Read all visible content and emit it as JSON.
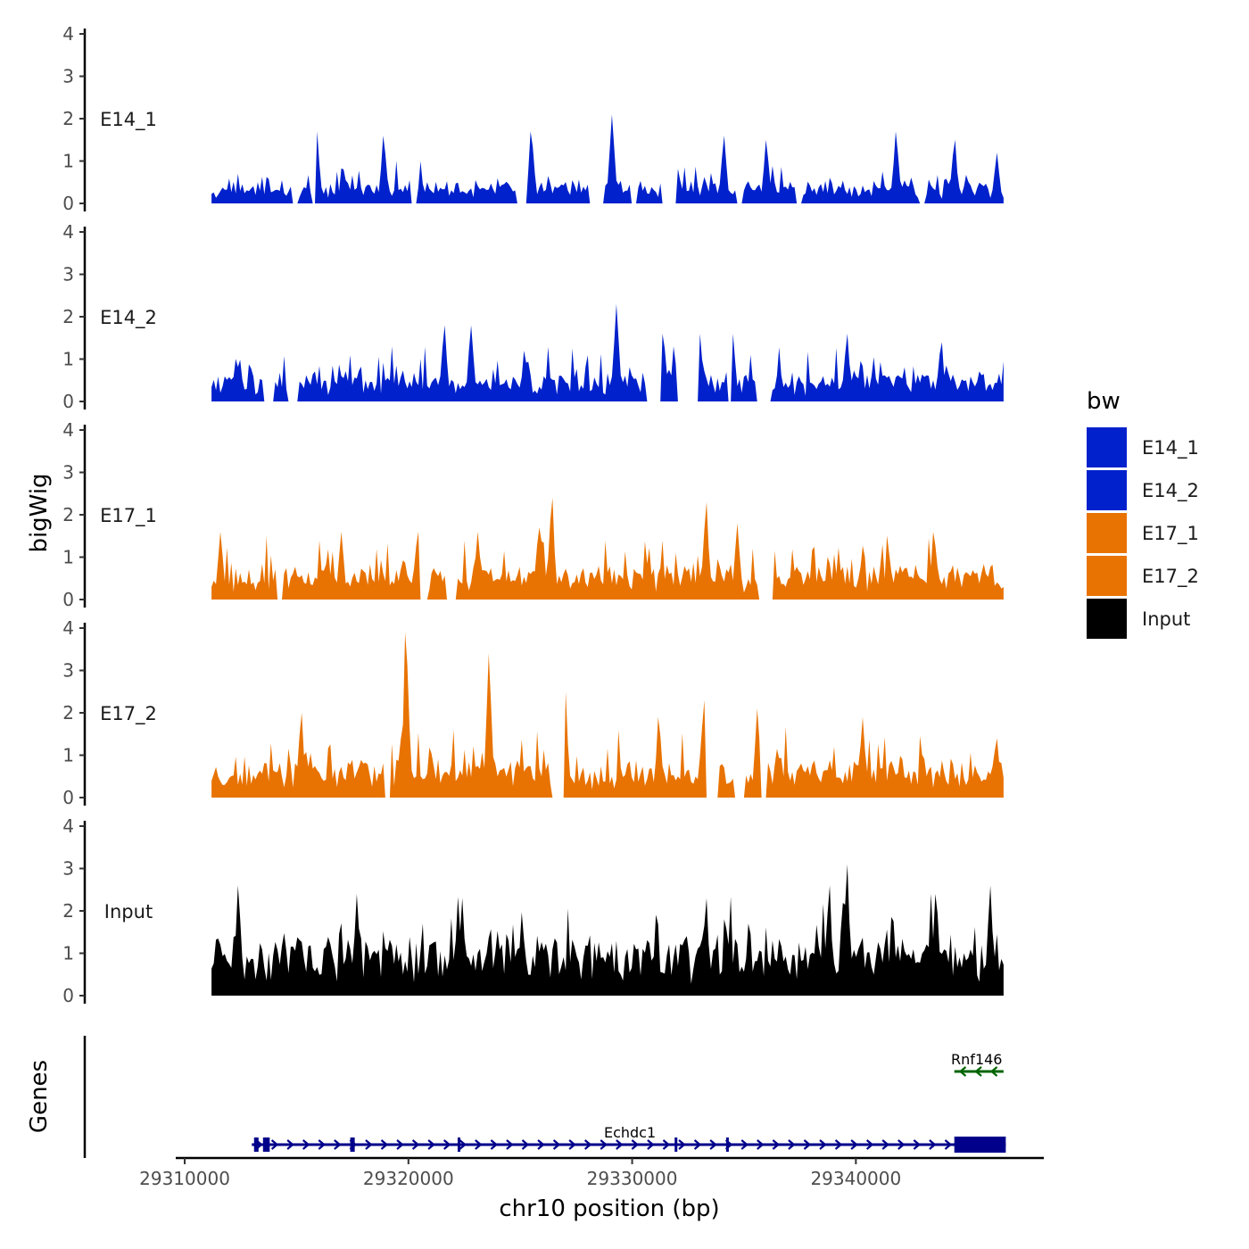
{
  "chart_data": {
    "type": "area",
    "chromosome": "chr10",
    "xlabel": "chr10 position (bp)",
    "ylabel": "bigWig",
    "genes_label": "Genes",
    "xlim": [
      29309600,
      29348400
    ],
    "xticks": [
      29310000,
      29320000,
      29330000,
      29340000
    ],
    "xtick_labels": [
      "29310000",
      "29320000",
      "29330000",
      "29340000"
    ],
    "ylim": [
      0,
      4
    ],
    "yticks": [
      0,
      1,
      2,
      3,
      4
    ],
    "ytick_labels": [
      "0",
      "1",
      "2",
      "3",
      "4"
    ],
    "track_range": [
      29311200,
      29346600
    ],
    "legend": {
      "title": "bw",
      "entries": [
        {
          "label": "E14_1",
          "color": "#0021CC"
        },
        {
          "label": "E14_2",
          "color": "#0021CC"
        },
        {
          "label": "E17_1",
          "color": "#E87303"
        },
        {
          "label": "E17_2",
          "color": "#E87303"
        },
        {
          "label": "Input",
          "color": "#000000"
        }
      ]
    },
    "series": [
      {
        "name": "E14_1",
        "color": "#0021CC",
        "seed": 11,
        "base": 0.35,
        "noise": 0.35,
        "gaps": 10,
        "peaks": [
          [
            29315900,
            1.7
          ],
          [
            29318900,
            1.6
          ],
          [
            29325500,
            1.7
          ],
          [
            29329100,
            2.1
          ],
          [
            29334100,
            1.6
          ],
          [
            29336000,
            1.5
          ],
          [
            29341800,
            1.7
          ],
          [
            29344400,
            1.5
          ],
          [
            29346300,
            1.2
          ]
        ]
      },
      {
        "name": "E14_2",
        "color": "#0021CC",
        "seed": 23,
        "base": 0.45,
        "noise": 0.45,
        "gaps": 7,
        "peaks": [
          [
            29321600,
            1.8
          ],
          [
            29322800,
            1.8
          ],
          [
            29325200,
            1.2
          ],
          [
            29329300,
            2.3
          ],
          [
            29331400,
            1.6
          ],
          [
            29333000,
            1.6
          ],
          [
            29334500,
            1.6
          ],
          [
            29339600,
            1.6
          ],
          [
            29343800,
            1.4
          ]
        ]
      },
      {
        "name": "E17_1",
        "color": "#E87303",
        "seed": 37,
        "base": 0.55,
        "noise": 0.5,
        "gaps": 4,
        "peaks": [
          [
            29311600,
            1.6
          ],
          [
            29317000,
            1.6
          ],
          [
            29320400,
            1.6
          ],
          [
            29323100,
            1.6
          ],
          [
            29325900,
            1.7
          ],
          [
            29326400,
            2.4
          ],
          [
            29333300,
            2.3
          ],
          [
            29334700,
            1.8
          ],
          [
            29343500,
            1.6
          ]
        ]
      },
      {
        "name": "E17_2",
        "color": "#E87303",
        "seed": 53,
        "base": 0.6,
        "noise": 0.5,
        "gaps": 6,
        "peaks": [
          [
            29315200,
            2.0
          ],
          [
            29319900,
            3.9
          ],
          [
            29323600,
            3.4
          ],
          [
            29327000,
            2.5
          ],
          [
            29331200,
            1.9
          ],
          [
            29333200,
            2.3
          ],
          [
            29335600,
            2.1
          ],
          [
            29340300,
            1.9
          ],
          [
            29346300,
            1.4
          ]
        ]
      },
      {
        "name": "Input",
        "color": "#000000",
        "seed": 71,
        "base": 1.0,
        "noise": 0.7,
        "gaps": 0,
        "peaks": [
          [
            29312400,
            2.6
          ],
          [
            29317700,
            2.4
          ],
          [
            29322400,
            2.3
          ],
          [
            29333300,
            2.3
          ],
          [
            29338800,
            2.6
          ],
          [
            29339600,
            3.1
          ],
          [
            29343600,
            2.4
          ],
          [
            29346000,
            2.6
          ]
        ]
      }
    ],
    "genes": [
      {
        "name": "Rnf146",
        "strand": "-",
        "color": "#006400",
        "row": "top",
        "start": 29344400,
        "end": 29346600,
        "exons": [],
        "label_x": 29345400
      },
      {
        "name": "Echdc1",
        "strand": "+",
        "color": "#00008B",
        "row": "bottom",
        "start": 29313000,
        "end": 29346700,
        "exons": [
          [
            29313100,
            29313300
          ],
          [
            29313500,
            29313800
          ],
          [
            29317400,
            29317600
          ],
          [
            29322200,
            29322300
          ],
          [
            29331900,
            29332000
          ],
          [
            29334200,
            29334300
          ],
          [
            29344400,
            29346700
          ]
        ],
        "label_x": 29329900
      }
    ]
  }
}
